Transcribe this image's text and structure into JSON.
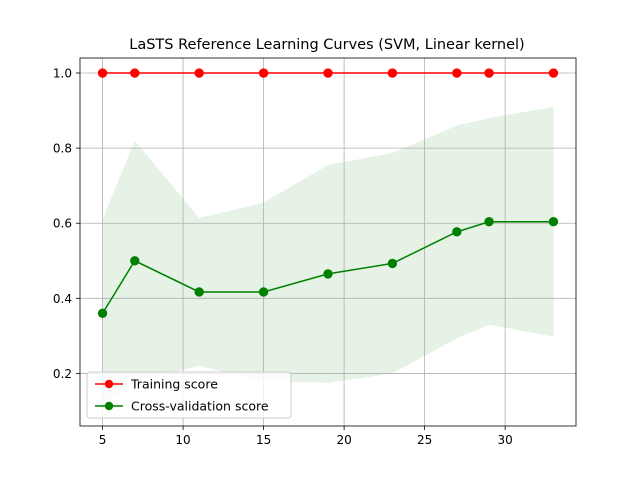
{
  "chart_data": {
    "type": "line",
    "title": "LaSTS Reference Learning Curves (SVM, Linear kernel)",
    "xlabel": "",
    "ylabel": "",
    "xlim": [
      3.6,
      34.4
    ],
    "ylim": [
      0.06,
      1.04
    ],
    "x_ticks": [
      5,
      10,
      15,
      20,
      25,
      30
    ],
    "y_ticks": [
      0.2,
      0.4,
      0.6,
      0.8,
      1.0
    ],
    "x_tick_labels": [
      "5",
      "10",
      "15",
      "20",
      "25",
      "30"
    ],
    "y_tick_labels": [
      "0.2",
      "0.4",
      "0.6",
      "0.8",
      "1.0"
    ],
    "grid": true,
    "legend_position": "lower-left",
    "x": [
      5,
      7,
      11,
      15,
      19,
      23,
      27,
      29,
      33
    ],
    "series": [
      {
        "name": "Training score",
        "color": "#ff0000",
        "values": [
          1.0,
          1.0,
          1.0,
          1.0,
          1.0,
          1.0,
          1.0,
          1.0,
          1.0
        ],
        "band_lower": [
          1.0,
          1.0,
          1.0,
          1.0,
          1.0,
          1.0,
          1.0,
          1.0,
          1.0
        ],
        "band_upper": [
          1.0,
          1.0,
          1.0,
          1.0,
          1.0,
          1.0,
          1.0,
          1.0,
          1.0
        ]
      },
      {
        "name": "Cross-validation score",
        "color": "#008000",
        "values": [
          0.36,
          0.5,
          0.417,
          0.417,
          0.465,
          0.493,
          0.577,
          0.604,
          0.604
        ],
        "band_lower": [
          0.11,
          0.18,
          0.22,
          0.18,
          0.175,
          0.2,
          0.293,
          0.33,
          0.298
        ],
        "band_upper": [
          0.61,
          0.82,
          0.614,
          0.655,
          0.755,
          0.787,
          0.86,
          0.88,
          0.91
        ]
      }
    ]
  }
}
